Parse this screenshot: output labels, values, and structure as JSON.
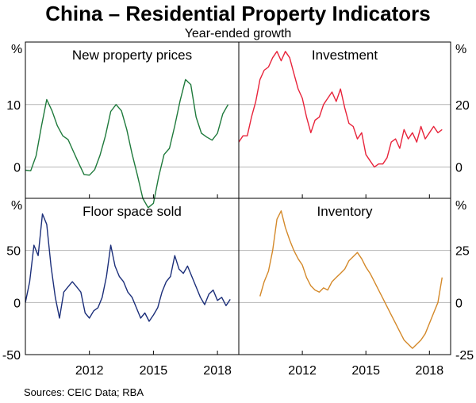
{
  "title": "China – Residential Property Indicators",
  "subtitle": "Year-ended growth",
  "source": "Sources: CEIC Data; RBA",
  "x_ticks": [
    "2012",
    "2015",
    "2018"
  ],
  "chart_data": [
    {
      "type": "line",
      "title": "New property prices",
      "unit_label": "%",
      "axis_side": "left",
      "color": "#1f7a3c",
      "ylim": [
        -5,
        20
      ],
      "yticks": [
        "10",
        "0"
      ],
      "xlim": [
        2009,
        2019
      ],
      "x": [
        2009.0,
        2009.25,
        2009.5,
        2009.75,
        2010.0,
        2010.25,
        2010.5,
        2010.75,
        2011.0,
        2011.25,
        2011.5,
        2011.75,
        2012.0,
        2012.25,
        2012.5,
        2012.75,
        2013.0,
        2013.25,
        2013.5,
        2013.75,
        2014.0,
        2014.25,
        2014.5,
        2014.75,
        2015.0,
        2015.25,
        2015.5,
        2015.75,
        2016.0,
        2016.25,
        2016.5,
        2016.75,
        2017.0,
        2017.25,
        2017.5,
        2017.75,
        2018.0,
        2018.25,
        2018.5
      ],
      "values": [
        -0.5,
        -0.6,
        1.8,
        6.5,
        10.8,
        9.0,
        6.6,
        5.0,
        4.4,
        2.5,
        0.6,
        -1.2,
        -1.3,
        -0.4,
        1.9,
        5.0,
        8.9,
        10.0,
        9.0,
        6.0,
        2.1,
        -1.3,
        -5.0,
        -6.5,
        -5.8,
        -1.5,
        2.0,
        3.0,
        6.6,
        10.6,
        14.0,
        13.2,
        8.0,
        5.4,
        4.8,
        4.3,
        5.4,
        8.5,
        10.0
      ]
    },
    {
      "type": "line",
      "title": "Investment",
      "unit_label": "%",
      "axis_side": "right",
      "color": "#e8243b",
      "ylim": [
        -10,
        40
      ],
      "yticks": [
        "20",
        "0"
      ],
      "xlim": [
        2009,
        2019
      ],
      "x": [
        2009.0,
        2009.2,
        2009.4,
        2009.6,
        2009.8,
        2010.0,
        2010.2,
        2010.4,
        2010.6,
        2010.8,
        2011.0,
        2011.2,
        2011.4,
        2011.6,
        2011.8,
        2012.0,
        2012.2,
        2012.4,
        2012.6,
        2012.8,
        2013.0,
        2013.2,
        2013.4,
        2013.6,
        2013.8,
        2014.0,
        2014.2,
        2014.4,
        2014.6,
        2014.8,
        2015.0,
        2015.2,
        2015.4,
        2015.6,
        2015.8,
        2016.0,
        2016.2,
        2016.4,
        2016.6,
        2016.8,
        2017.0,
        2017.2,
        2017.4,
        2017.6,
        2017.8,
        2018.0,
        2018.2,
        2018.4,
        2018.6
      ],
      "values": [
        8,
        10,
        10,
        16,
        21,
        28,
        31,
        32,
        35,
        37,
        34,
        37,
        35,
        30,
        25,
        22,
        16,
        11,
        15,
        16,
        20,
        22,
        24,
        21,
        25,
        19,
        14,
        13,
        9,
        11,
        4,
        2,
        0,
        1,
        1,
        3,
        8,
        9,
        6,
        12,
        9,
        11,
        8,
        13,
        9,
        11,
        13,
        11,
        12
      ]
    },
    {
      "type": "line",
      "title": "Floor space sold",
      "unit_label": "%",
      "axis_side": "left",
      "color": "#1c2f7a",
      "ylim": [
        -50,
        100
      ],
      "yticks": [
        "50",
        "0",
        "-50"
      ],
      "xlim": [
        2009,
        2019
      ],
      "x": [
        2009.0,
        2009.2,
        2009.4,
        2009.6,
        2009.8,
        2010.0,
        2010.2,
        2010.4,
        2010.6,
        2010.8,
        2011.0,
        2011.2,
        2011.4,
        2011.6,
        2011.8,
        2012.0,
        2012.2,
        2012.4,
        2012.6,
        2012.8,
        2013.0,
        2013.2,
        2013.4,
        2013.6,
        2013.8,
        2014.0,
        2014.2,
        2014.4,
        2014.6,
        2014.8,
        2015.0,
        2015.2,
        2015.4,
        2015.6,
        2015.8,
        2016.0,
        2016.2,
        2016.4,
        2016.6,
        2016.8,
        2017.0,
        2017.2,
        2017.4,
        2017.6,
        2017.8,
        2018.0,
        2018.2,
        2018.4,
        2018.6
      ],
      "values": [
        0,
        20,
        55,
        45,
        85,
        75,
        35,
        5,
        -15,
        10,
        15,
        20,
        15,
        10,
        -10,
        -15,
        -8,
        -5,
        5,
        25,
        55,
        35,
        25,
        20,
        10,
        5,
        -5,
        -15,
        -10,
        -18,
        -12,
        -5,
        10,
        20,
        25,
        45,
        32,
        28,
        35,
        25,
        15,
        5,
        -2,
        8,
        12,
        2,
        5,
        -3,
        3
      ]
    },
    {
      "type": "line",
      "title": "Inventory",
      "unit_label": "%",
      "axis_side": "right",
      "color": "#d4892a",
      "ylim": [
        -25,
        50
      ],
      "yticks": [
        "25",
        "0",
        "-25"
      ],
      "xlim": [
        2009,
        2019
      ],
      "x": [
        2010.0,
        2010.2,
        2010.4,
        2010.6,
        2010.8,
        2011.0,
        2011.2,
        2011.4,
        2011.6,
        2011.8,
        2012.0,
        2012.2,
        2012.4,
        2012.6,
        2012.8,
        2013.0,
        2013.2,
        2013.4,
        2013.6,
        2013.8,
        2014.0,
        2014.2,
        2014.4,
        2014.6,
        2014.8,
        2015.0,
        2015.2,
        2015.4,
        2015.6,
        2015.8,
        2016.0,
        2016.2,
        2016.4,
        2016.6,
        2016.8,
        2017.0,
        2017.2,
        2017.4,
        2017.6,
        2017.8,
        2018.0,
        2018.2,
        2018.4,
        2018.6
      ],
      "values": [
        3,
        10,
        15,
        25,
        40,
        44,
        36,
        30,
        25,
        21,
        18,
        12,
        8,
        6,
        5,
        7,
        6,
        10,
        12,
        14,
        16,
        20,
        22,
        24,
        21,
        17,
        14,
        10,
        6,
        2,
        -2,
        -6,
        -10,
        -14,
        -18,
        -20,
        -22,
        -20,
        -18,
        -15,
        -10,
        -5,
        0,
        12
      ]
    }
  ]
}
